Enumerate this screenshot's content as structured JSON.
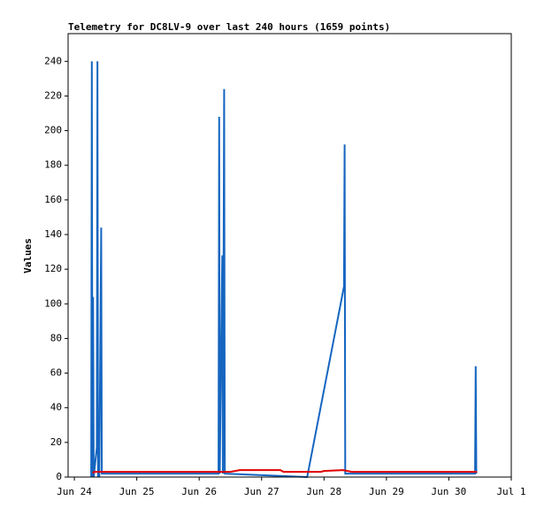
{
  "chart_data": {
    "type": "line",
    "title": "Telemetry for DC8LV-9 over last 240 hours (1659 points)",
    "y_label": "Values",
    "xlim": [
      23.9,
      31
    ],
    "ylim": [
      0,
      256
    ],
    "xticks": [
      {
        "value": 24,
        "label": "Jun 24"
      },
      {
        "value": 25,
        "label": "Jun 25"
      },
      {
        "value": 26,
        "label": "Jun 26"
      },
      {
        "value": 27,
        "label": "Jun 27"
      },
      {
        "value": 28,
        "label": "Jun 28"
      },
      {
        "value": 29,
        "label": "Jun 29"
      },
      {
        "value": 30,
        "label": "Jun 30"
      },
      {
        "value": 31,
        "label": "Jul 1"
      }
    ],
    "yticks": [
      0,
      20,
      40,
      60,
      80,
      100,
      120,
      140,
      160,
      180,
      200,
      220,
      240
    ],
    "series": [
      {
        "color": "#1565c0",
        "x": [
          24.27,
          24.28,
          24.29,
          24.3,
          24.31,
          24.36,
          24.37,
          24.38,
          24.39,
          24.4,
          24.43,
          24.44,
          26.31,
          26.32,
          26.33,
          26.37,
          26.38,
          26.4,
          26.41,
          27.73,
          28.32,
          28.33,
          28.34,
          30.42,
          30.43,
          30.44
        ],
        "values": [
          0,
          240,
          0,
          104,
          0,
          17,
          240,
          0,
          32,
          0,
          144,
          2,
          2,
          208,
          2,
          128,
          2,
          224,
          2,
          0,
          110,
          192,
          2,
          2,
          64,
          2
        ]
      },
      {
        "color": "#e00000",
        "x": [
          24.3,
          24.31,
          26.5,
          26.65,
          27.3,
          27.35,
          27.95,
          28.0,
          28.3,
          28.45,
          30.45
        ],
        "values": [
          2,
          3,
          3,
          4,
          4,
          3,
          3,
          3.5,
          4,
          3,
          3
        ]
      }
    ]
  }
}
